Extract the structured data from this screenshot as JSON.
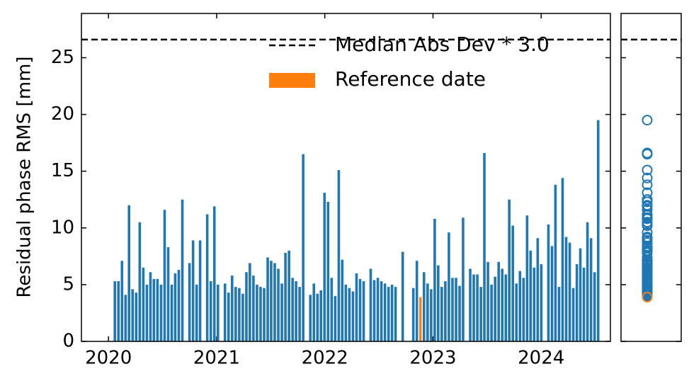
{
  "chart_data": {
    "type": "bar",
    "y_label": "Residual phase RMS [mm]",
    "xlim": [
      2019.75,
      2024.64
    ],
    "xticks": [
      2020,
      2021,
      2022,
      2023,
      2024
    ],
    "ylim": [
      0,
      28.9
    ],
    "yticks": [
      0,
      5,
      10,
      15,
      20,
      25
    ],
    "threshold": {
      "name": "Median Abs Dev * 3.0",
      "value": 26.6
    },
    "series": [
      {
        "color": "#1f77b4",
        "x": [
          2020.059,
          2020.092,
          2020.125,
          2020.158,
          2020.19,
          2020.223,
          2020.256,
          2020.289,
          2020.322,
          2020.355,
          2020.388,
          2020.42,
          2020.453,
          2020.486,
          2020.519,
          2020.552,
          2020.585,
          2020.617,
          2020.65,
          2020.683,
          2020.749,
          2020.782,
          2020.815,
          2020.847,
          2020.913,
          2020.946,
          2020.979,
          2021.012,
          2021.077,
          2021.11,
          2021.143,
          2021.176,
          2021.209,
          2021.242,
          2021.275,
          2021.307,
          2021.34,
          2021.373,
          2021.406,
          2021.439,
          2021.472,
          2021.504,
          2021.537,
          2021.57,
          2021.603,
          2021.636,
          2021.669,
          2021.702,
          2021.734,
          2021.767,
          2021.8,
          2021.866,
          2021.899,
          2021.932,
          2021.964,
          2021.997,
          2022.03,
          2022.063,
          2022.096,
          2022.129,
          2022.161,
          2022.194,
          2022.227,
          2022.26,
          2022.293,
          2022.326,
          2022.359,
          2022.424,
          2022.457,
          2022.49,
          2022.523,
          2022.556,
          2022.589,
          2022.621,
          2022.654,
          2022.72,
          2022.818,
          2022.851,
          2022.917,
          2022.95,
          2022.983,
          2023.016,
          2023.048,
          2023.081,
          2023.114,
          2023.147,
          2023.18,
          2023.213,
          2023.246,
          2023.278,
          2023.344,
          2023.377,
          2023.41,
          2023.443,
          2023.475,
          2023.508,
          2023.541,
          2023.574,
          2023.607,
          2023.64,
          2023.673,
          2023.705,
          2023.738,
          2023.771,
          2023.804,
          2023.837,
          2023.87,
          2023.902,
          2023.935,
          2023.968,
          2024.001,
          2024.067,
          2024.1,
          2024.132,
          2024.165,
          2024.198,
          2024.231,
          2024.264,
          2024.297,
          2024.33,
          2024.362,
          2024.395,
          2024.428,
          2024.461,
          2024.494,
          2024.527
        ],
        "values": [
          5.3,
          5.3,
          7.1,
          4.1,
          12.0,
          4.6,
          4.3,
          10.5,
          6.5,
          5.0,
          6.1,
          5.5,
          5.5,
          5.0,
          11.6,
          8.3,
          5.0,
          6.0,
          6.3,
          12.5,
          6.9,
          8.9,
          5.0,
          8.9,
          11.2,
          5.3,
          11.9,
          5.0,
          5.1,
          4.3,
          5.8,
          4.8,
          4.7,
          4.2,
          6.1,
          6.9,
          5.8,
          5.0,
          4.8,
          4.7,
          7.4,
          7.1,
          6.9,
          6.4,
          5.1,
          7.8,
          8.0,
          5.6,
          5.3,
          4.8,
          16.5,
          4.1,
          5.1,
          4.2,
          4.5,
          13.1,
          12.3,
          5.6,
          4.0,
          15.1,
          7.2,
          5.0,
          4.7,
          4.4,
          6.0,
          5.5,
          5.3,
          6.4,
          5.4,
          5.6,
          5.3,
          5.1,
          4.8,
          5.0,
          4.8,
          7.9,
          4.7,
          7.1,
          6.1,
          5.1,
          4.6,
          10.8,
          6.7,
          4.8,
          5.3,
          9.6,
          5.6,
          5.6,
          4.9,
          10.9,
          6.4,
          5.9,
          5.9,
          4.8,
          16.6,
          7.0,
          5.0,
          5.7,
          7.0,
          6.4,
          5.9,
          12.5,
          10.2,
          5.1,
          6.2,
          5.6,
          11.1,
          8.0,
          6.5,
          9.1,
          6.8,
          10.3,
          8.4,
          13.8,
          4.8,
          14.4,
          9.2,
          8.7,
          4.7,
          6.8,
          8.2,
          6.5,
          10.5,
          9.1,
          6.1,
          19.5
        ]
      },
      {
        "name": "Reference date",
        "color": "#ff7f0e",
        "x": [
          2022.884
        ],
        "values": [
          3.9
        ]
      }
    ]
  }
}
